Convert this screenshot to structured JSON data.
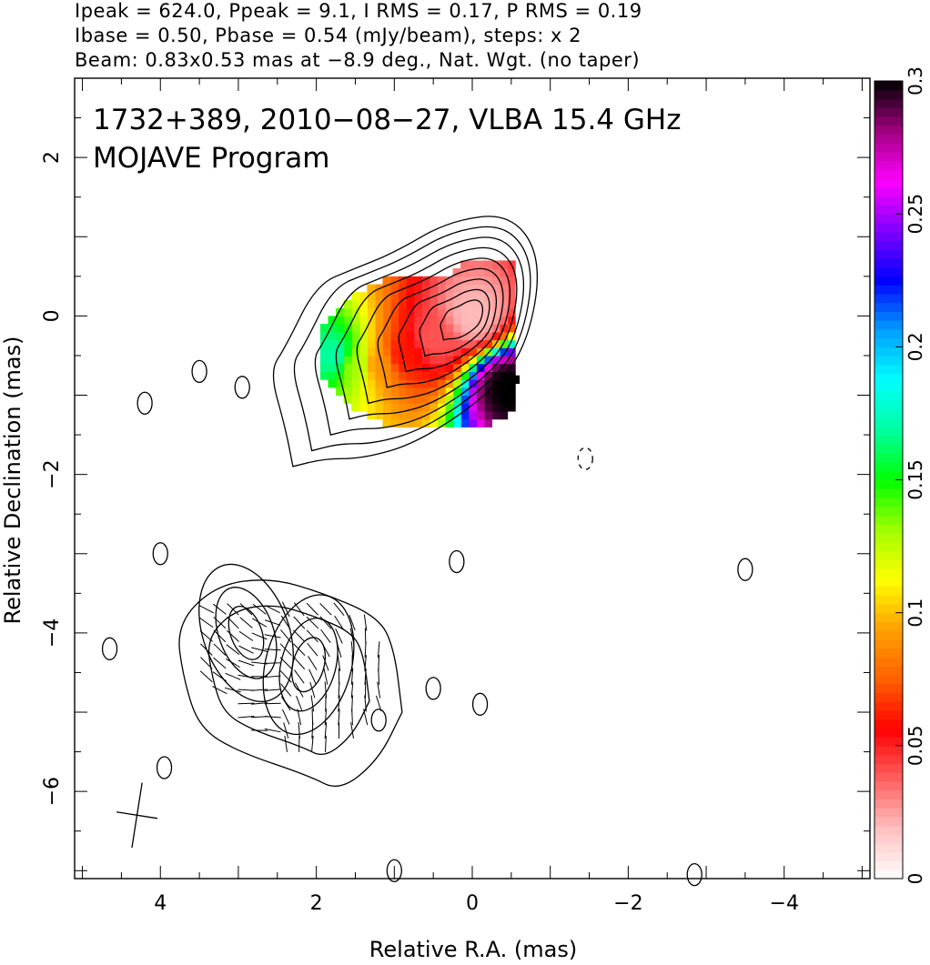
{
  "header": {
    "line1": "Ipeak = 624.0, Ppeak = 9.1, I RMS = 0.17, P RMS = 0.19",
    "line2": "Ibase = 0.50, Pbase = 0.54 (mJy/beam), steps: x 2",
    "line3": "Beam: 0.83x0.53 mas at −8.9 deg., Nat. Wgt. (no taper)"
  },
  "chart_data": {
    "type": "heatmap",
    "title_line1": "1732+389, 2010−08−27, VLBA 15.4 GHz",
    "title_line2": "MOJAVE Program",
    "xlabel": "Relative R.A. (mas)",
    "ylabel": "Relative Declination (mas)",
    "xlim": [
      5.1,
      -5.1
    ],
    "ylim": [
      -7.1,
      3.0
    ],
    "x_ticks": [
      4,
      2,
      0,
      -2,
      -4
    ],
    "x_tick_labels": [
      "4",
      "2",
      "0",
      "−2",
      "−4"
    ],
    "y_ticks": [
      2,
      0,
      -2,
      -4,
      -6
    ],
    "y_tick_labels": [
      "2",
      "0",
      "−2",
      "−4",
      "−6"
    ],
    "colorbar": {
      "range": [
        0,
        0.3
      ],
      "ticks": [
        0,
        0.05,
        0.1,
        0.15,
        0.2,
        0.25,
        0.3
      ],
      "tick_labels": [
        "0",
        "0.05",
        "0.1",
        "0.15",
        "0.2",
        "0.25",
        "0.3"
      ],
      "colors": [
        "#ffffff",
        "#ffc0c0",
        "#ff6060",
        "#ff0000",
        "#ff6000",
        "#ffa000",
        "#ffff00",
        "#a0ff00",
        "#00ff00",
        "#00ffa0",
        "#00ffff",
        "#00a0ff",
        "#0000ff",
        "#8000ff",
        "#ff00ff",
        "#a00080",
        "#000000"
      ]
    },
    "core_contours": {
      "center": [
        0.0,
        0.0
      ],
      "outer": [
        [
          2.3,
          -1.9
        ],
        [
          2.4,
          -1.4
        ],
        [
          2.6,
          -0.7
        ],
        [
          2.4,
          -0.4
        ],
        [
          2.0,
          0.4
        ],
        [
          1.5,
          0.6
        ],
        [
          1.0,
          0.8
        ],
        [
          0.3,
          1.2
        ],
        [
          -0.5,
          1.3
        ],
        [
          -0.9,
          0.7
        ],
        [
          -0.7,
          -0.4
        ],
        [
          -0.2,
          -1.0
        ],
        [
          0.7,
          -1.6
        ],
        [
          1.4,
          -1.8
        ],
        [
          1.9,
          -1.8
        ]
      ],
      "levels": 9
    },
    "jet_contours": {
      "outer": [
        [
          0.9,
          -5.0
        ],
        [
          1.0,
          -4.2
        ],
        [
          1.2,
          -3.8
        ],
        [
          1.9,
          -3.5
        ],
        [
          2.6,
          -3.3
        ],
        [
          3.3,
          -3.4
        ],
        [
          3.8,
          -3.9
        ],
        [
          3.7,
          -4.6
        ],
        [
          3.5,
          -5.2
        ],
        [
          3.0,
          -5.5
        ],
        [
          2.1,
          -5.8
        ],
        [
          1.7,
          -6.0
        ],
        [
          1.2,
          -5.6
        ]
      ],
      "sub_centers": [
        [
          2.1,
          -4.4
        ],
        [
          2.9,
          -4.0
        ]
      ]
    },
    "small_contours": [
      [
        4.2,
        -1.1
      ],
      [
        3.5,
        -0.7
      ],
      [
        2.95,
        -0.9
      ],
      [
        4.0,
        -3.0
      ],
      [
        4.65,
        -4.2
      ],
      [
        3.95,
        -5.7
      ],
      [
        1.2,
        -5.1
      ],
      [
        0.5,
        -4.7
      ],
      [
        0.2,
        -3.1
      ],
      [
        -0.1,
        -4.9
      ],
      [
        -1.45,
        -1.8
      ],
      [
        -3.5,
        -3.2
      ],
      [
        1.0,
        -7.0
      ],
      [
        -2.85,
        -7.05
      ]
    ],
    "dashed_contours": [
      [
        -1.45,
        -1.8
      ]
    ],
    "colored_region": {
      "pixel_size_mas": 0.1,
      "description_values": [
        {
          "x": 0.0,
          "y": 0.0,
          "v": 0.02
        },
        {
          "x": 0.5,
          "y": -0.3,
          "v": 0.04
        },
        {
          "x": 0.9,
          "y": -0.5,
          "v": 0.06
        },
        {
          "x": 1.2,
          "y": -0.6,
          "v": 0.09
        },
        {
          "x": 1.5,
          "y": -0.6,
          "v": 0.13
        },
        {
          "x": 1.75,
          "y": -0.5,
          "v": 0.17
        },
        {
          "x": -0.45,
          "y": -0.9,
          "v": 0.3
        }
      ]
    },
    "beam": {
      "major_mas": 0.83,
      "minor_mas": 0.53,
      "pa_deg": -8.9,
      "center": [
        4.3,
        -6.3
      ]
    }
  }
}
